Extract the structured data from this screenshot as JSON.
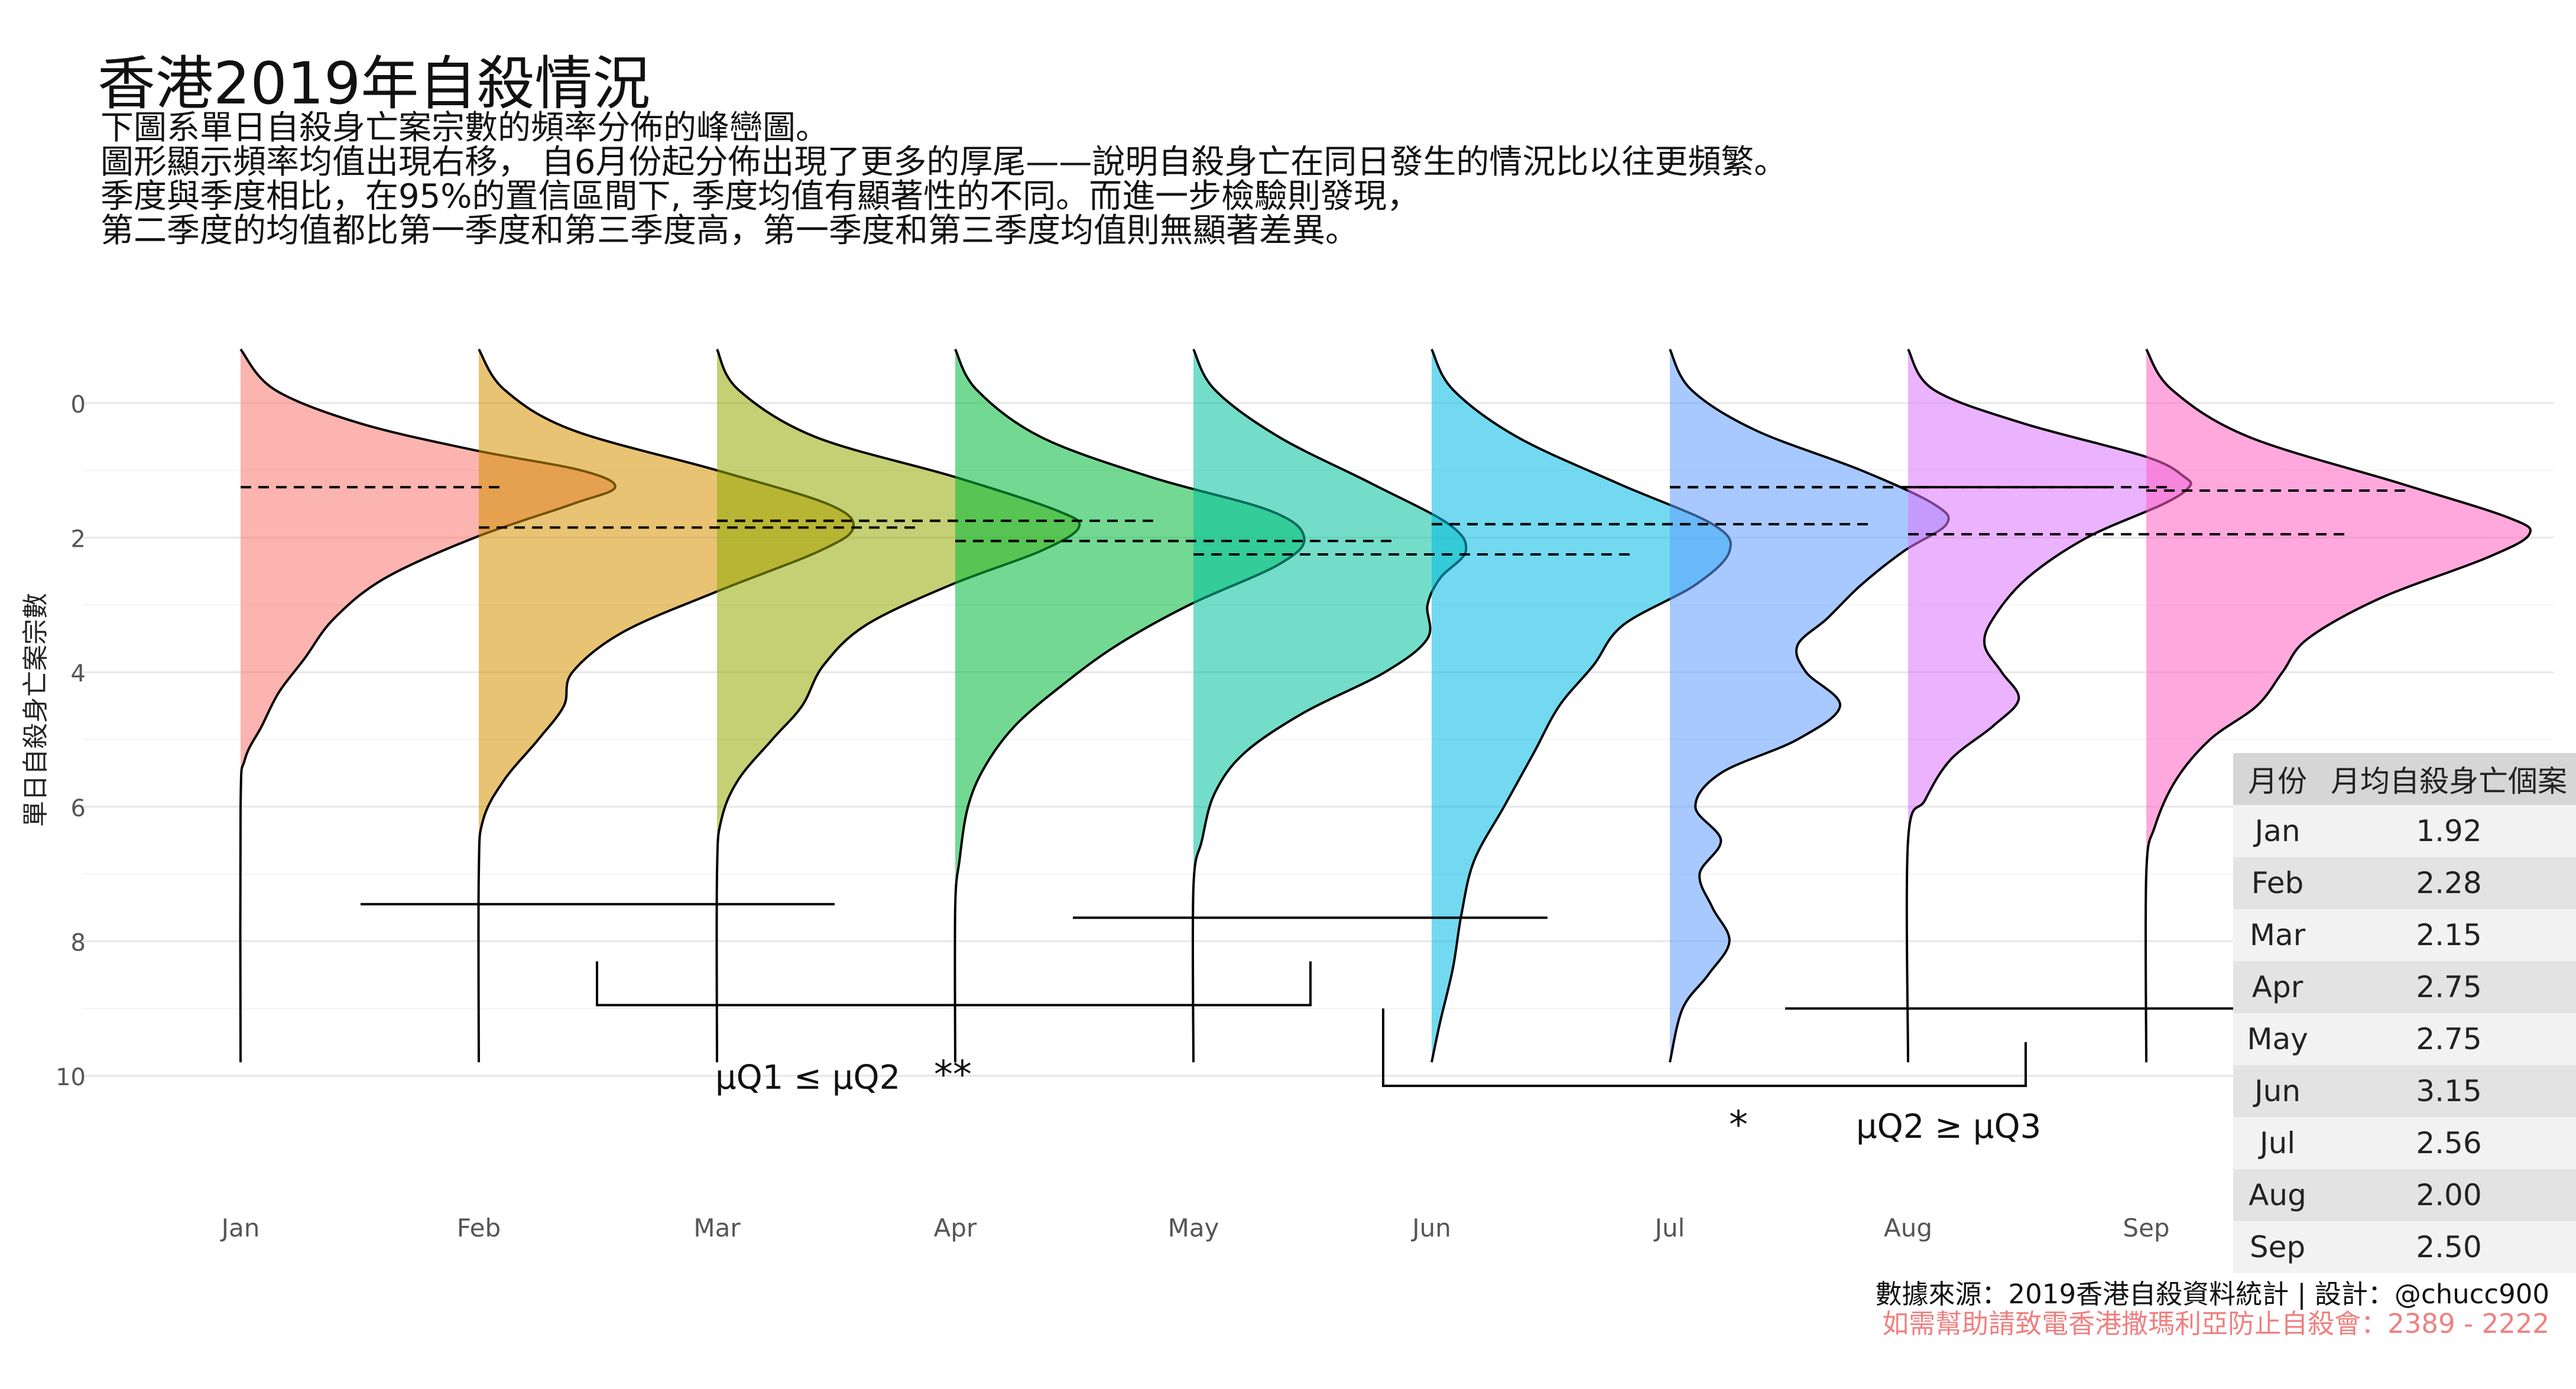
{
  "title": "香港2019年自殺情況",
  "subtitle": [
    "下圖系單日自殺身亡案宗數的頻率分佈的峰巒圖。",
    "圖形顯示頻率均值出現右移， 自6月份起分佈出現了更多的厚尾——說明自殺身亡在同日發生的情況比以往更頻繁。",
    "季度與季度相比，在95%的置信區間下, 季度均值有顯著性的不同。而進一步檢驗則發現，",
    "第二季度的均值都比第一季度和第三季度高，第一季度和第三季度均值則無顯著差異。"
  ],
  "caption": {
    "source": "數據來源：2019香港自殺資料統計 | 設計：@chucc900",
    "hotline": "如需幫助請致電香港撒瑪利亞防止自殺會：2389 - 2222"
  },
  "table": {
    "headers": [
      "月份",
      "月均自殺身亡個案"
    ],
    "rows": [
      [
        "Jan",
        "1.92"
      ],
      [
        "Feb",
        "2.28"
      ],
      [
        "Mar",
        "2.15"
      ],
      [
        "Apr",
        "2.75"
      ],
      [
        "May",
        "2.75"
      ],
      [
        "Jun",
        "3.15"
      ],
      [
        "Jul",
        "2.56"
      ],
      [
        "Aug",
        "2.00"
      ],
      [
        "Sep",
        "2.50"
      ]
    ]
  },
  "chart_data": {
    "type": "ridgeline",
    "orientation": "vertical",
    "ylabel": "單日自殺身亡案宗數",
    "xlabel": "",
    "ylim": [
      0,
      10
    ],
    "yticks": [
      0,
      2,
      4,
      6,
      8,
      10
    ],
    "grid": true,
    "categories": [
      "Jan",
      "Feb",
      "Mar",
      "Apr",
      "May",
      "Jun",
      "Jul",
      "Aug",
      "Sep"
    ],
    "colors": [
      "#F8766D",
      "#D39200",
      "#93AA00",
      "#00BA38",
      "#00C19F",
      "#00B9E3",
      "#619CFF",
      "#DB72FB",
      "#FF61C3"
    ],
    "series": [
      {
        "name": "Jan",
        "means": [
          1.25
        ],
        "peak": 1.25,
        "density": [
          [
            -0.8,
            0
          ],
          [
            -0.2,
            0.08
          ],
          [
            0.3,
            0.28
          ],
          [
            0.7,
            0.55
          ],
          [
            1.0,
            0.8
          ],
          [
            1.25,
            0.88
          ],
          [
            1.5,
            0.78
          ],
          [
            2.0,
            0.55
          ],
          [
            2.6,
            0.34
          ],
          [
            3.2,
            0.22
          ],
          [
            3.8,
            0.15
          ],
          [
            4.3,
            0.09
          ],
          [
            4.8,
            0.05
          ],
          [
            5.3,
            0.01
          ],
          [
            6,
            0
          ],
          [
            9.8,
            0
          ]
        ]
      },
      {
        "name": "Feb",
        "means": [
          1.85
        ],
        "peak": 1.85,
        "density": [
          [
            -0.8,
            0
          ],
          [
            -0.2,
            0.06
          ],
          [
            0.4,
            0.22
          ],
          [
            1.0,
            0.56
          ],
          [
            1.5,
            0.82
          ],
          [
            1.85,
            0.88
          ],
          [
            2.2,
            0.8
          ],
          [
            2.8,
            0.56
          ],
          [
            3.4,
            0.34
          ],
          [
            4.0,
            0.22
          ],
          [
            4.5,
            0.2
          ],
          [
            5.0,
            0.14
          ],
          [
            5.6,
            0.06
          ],
          [
            6.2,
            0.01
          ],
          [
            7,
            0
          ],
          [
            9.8,
            0
          ]
        ]
      },
      {
        "name": "Mar",
        "means": [
          1.75,
          1.85
        ],
        "peak": 1.85,
        "density": [
          [
            -0.8,
            0
          ],
          [
            -0.2,
            0.05
          ],
          [
            0.5,
            0.23
          ],
          [
            1.1,
            0.56
          ],
          [
            1.6,
            0.8
          ],
          [
            1.85,
            0.85
          ],
          [
            2.2,
            0.76
          ],
          [
            2.7,
            0.55
          ],
          [
            3.3,
            0.35
          ],
          [
            3.9,
            0.25
          ],
          [
            4.5,
            0.2
          ],
          [
            5.0,
            0.13
          ],
          [
            5.6,
            0.05
          ],
          [
            6.2,
            0.01
          ],
          [
            7,
            0
          ],
          [
            9.8,
            0
          ]
        ]
      },
      {
        "name": "Apr",
        "means": [
          2.05,
          1.75
        ],
        "peak": 2.0,
        "density": [
          [
            -0.8,
            0
          ],
          [
            -0.2,
            0.05
          ],
          [
            0.5,
            0.2
          ],
          [
            1.1,
            0.46
          ],
          [
            1.6,
            0.74
          ],
          [
            2.0,
            0.82
          ],
          [
            2.4,
            0.76
          ],
          [
            3.0,
            0.55
          ],
          [
            3.6,
            0.38
          ],
          [
            4.2,
            0.25
          ],
          [
            4.8,
            0.14
          ],
          [
            5.4,
            0.07
          ],
          [
            6.0,
            0.03
          ],
          [
            6.8,
            0.01
          ],
          [
            7.5,
            0
          ],
          [
            9.8,
            0
          ]
        ]
      },
      {
        "name": "May",
        "means": [
          2.25,
          2.05
        ],
        "peak": 2.2,
        "density": [
          [
            -0.8,
            0
          ],
          [
            -0.2,
            0.05
          ],
          [
            0.5,
            0.2
          ],
          [
            1.2,
            0.42
          ],
          [
            1.8,
            0.6
          ],
          [
            2.2,
            0.64
          ],
          [
            2.6,
            0.58
          ],
          [
            3.0,
            0.55
          ],
          [
            3.5,
            0.55
          ],
          [
            4.0,
            0.45
          ],
          [
            4.6,
            0.26
          ],
          [
            5.2,
            0.12
          ],
          [
            5.8,
            0.05
          ],
          [
            6.5,
            0.02
          ],
          [
            7.2,
            0
          ],
          [
            9.8,
            0
          ]
        ]
      },
      {
        "name": "Jun",
        "means": [
          1.8,
          2.25
        ],
        "peak": 2.2,
        "density": [
          [
            -0.8,
            0
          ],
          [
            -0.2,
            0.05
          ],
          [
            0.5,
            0.2
          ],
          [
            1.2,
            0.44
          ],
          [
            1.8,
            0.66
          ],
          [
            2.2,
            0.7
          ],
          [
            2.7,
            0.62
          ],
          [
            3.3,
            0.45
          ],
          [
            3.9,
            0.38
          ],
          [
            4.5,
            0.3
          ],
          [
            5.2,
            0.24
          ],
          [
            6.0,
            0.17
          ],
          [
            6.8,
            0.1
          ],
          [
            7.6,
            0.07
          ],
          [
            8.4,
            0.05
          ],
          [
            9.2,
            0.02
          ],
          [
            9.8,
            0
          ]
        ]
      },
      {
        "name": "Jul",
        "means": [
          1.25,
          1.8
        ],
        "peak": 1.8,
        "density": [
          [
            -0.8,
            0
          ],
          [
            -0.2,
            0.05
          ],
          [
            0.4,
            0.2
          ],
          [
            1.0,
            0.45
          ],
          [
            1.5,
            0.62
          ],
          [
            1.8,
            0.65
          ],
          [
            2.2,
            0.55
          ],
          [
            2.7,
            0.45
          ],
          [
            3.2,
            0.37
          ],
          [
            3.6,
            0.3
          ],
          [
            4.0,
            0.32
          ],
          [
            4.5,
            0.4
          ],
          [
            5.0,
            0.3
          ],
          [
            5.5,
            0.12
          ],
          [
            6.0,
            0.06
          ],
          [
            6.5,
            0.12
          ],
          [
            7.0,
            0.07
          ],
          [
            7.5,
            0.1
          ],
          [
            8.0,
            0.14
          ],
          [
            8.5,
            0.09
          ],
          [
            9.0,
            0.03
          ],
          [
            9.8,
            0
          ]
        ]
      },
      {
        "name": "Aug",
        "means": [
          1.25,
          1.25
        ],
        "peak": 1.25,
        "density": [
          [
            -0.8,
            0
          ],
          [
            -0.2,
            0.06
          ],
          [
            0.3,
            0.27
          ],
          [
            0.8,
            0.56
          ],
          [
            1.1,
            0.65
          ],
          [
            1.25,
            0.66
          ],
          [
            1.5,
            0.6
          ],
          [
            2.0,
            0.42
          ],
          [
            2.6,
            0.28
          ],
          [
            3.2,
            0.2
          ],
          [
            3.6,
            0.18
          ],
          [
            4.0,
            0.22
          ],
          [
            4.4,
            0.26
          ],
          [
            4.8,
            0.2
          ],
          [
            5.3,
            0.1
          ],
          [
            5.9,
            0.04
          ],
          [
            6.5,
            0
          ],
          [
            9.8,
            0
          ]
        ]
      },
      {
        "name": "Sep",
        "means": [
          1.3,
          1.95
        ],
        "peak": 1.95,
        "density": [
          [
            -0.8,
            0
          ],
          [
            -0.2,
            0.06
          ],
          [
            0.5,
            0.24
          ],
          [
            1.2,
            0.6
          ],
          [
            1.7,
            0.85
          ],
          [
            1.95,
            0.9
          ],
          [
            2.3,
            0.8
          ],
          [
            2.9,
            0.55
          ],
          [
            3.5,
            0.38
          ],
          [
            4.0,
            0.32
          ],
          [
            4.5,
            0.26
          ],
          [
            5.0,
            0.15
          ],
          [
            5.6,
            0.07
          ],
          [
            6.3,
            0.02
          ],
          [
            7.0,
            0
          ],
          [
            9.8,
            0
          ]
        ]
      }
    ],
    "annotations": [
      {
        "text": "μQ1 ≤ μQ2",
        "label": "**"
      },
      {
        "text": "μQ2 ≥ μQ3",
        "label": "*"
      }
    ]
  }
}
